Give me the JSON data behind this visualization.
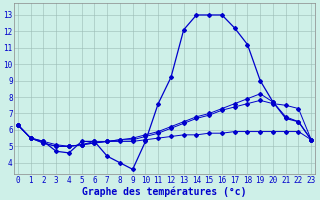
{
  "xlabel": "Graphe des températures (°c)",
  "bg_color": "#cef0e8",
  "grid_color": "#aaaaaa",
  "line_color": "#0000cc",
  "hours": [
    0,
    1,
    2,
    3,
    4,
    5,
    6,
    7,
    8,
    9,
    10,
    11,
    12,
    13,
    14,
    15,
    16,
    17,
    18,
    19,
    20,
    21,
    22,
    23
  ],
  "temp_main": [
    6.3,
    5.5,
    5.3,
    4.7,
    4.6,
    5.3,
    5.3,
    4.4,
    4.0,
    3.6,
    5.3,
    7.6,
    9.2,
    12.1,
    13.0,
    13.0,
    13.0,
    12.2,
    11.2,
    9.0,
    7.7,
    6.7,
    6.5,
    5.4
  ],
  "temp_line2": [
    6.3,
    5.5,
    5.2,
    5.0,
    5.0,
    5.1,
    5.2,
    5.3,
    5.4,
    5.5,
    5.7,
    5.9,
    6.2,
    6.5,
    6.8,
    7.0,
    7.3,
    7.6,
    7.9,
    8.2,
    7.7,
    6.8,
    6.5,
    5.4
  ],
  "temp_line3": [
    6.3,
    5.5,
    5.3,
    5.1,
    5.0,
    5.1,
    5.3,
    5.3,
    5.4,
    5.4,
    5.6,
    5.8,
    6.1,
    6.4,
    6.7,
    6.9,
    7.2,
    7.4,
    7.6,
    7.8,
    7.6,
    7.5,
    7.3,
    5.4
  ],
  "temp_line4": [
    6.3,
    5.5,
    5.2,
    5.0,
    5.0,
    5.1,
    5.2,
    5.3,
    5.3,
    5.3,
    5.4,
    5.5,
    5.6,
    5.7,
    5.7,
    5.8,
    5.8,
    5.9,
    5.9,
    5.9,
    5.9,
    5.9,
    5.9,
    5.4
  ],
  "ylim": [
    3.3,
    13.7
  ],
  "yticks": [
    4,
    5,
    6,
    7,
    8,
    9,
    10,
    11,
    12,
    13
  ],
  "xticks": [
    0,
    1,
    2,
    3,
    4,
    5,
    6,
    7,
    8,
    9,
    10,
    11,
    12,
    13,
    14,
    15,
    16,
    17,
    18,
    19,
    20,
    21,
    22,
    23
  ],
  "tick_fontsize": 5.5,
  "xlabel_fontsize": 7.0,
  "label_color": "#0000cc"
}
